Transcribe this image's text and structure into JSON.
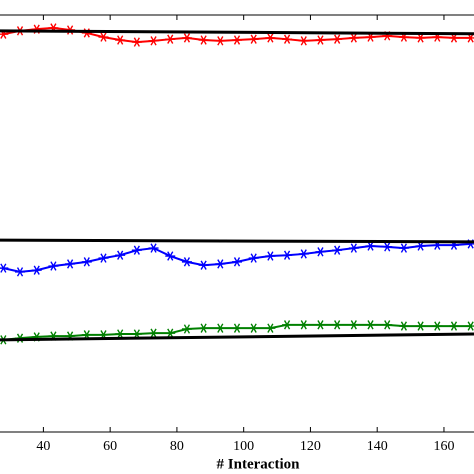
{
  "chart_data": {
    "type": "line",
    "x_label": "# Interaction",
    "xlim": [
      27,
      169
    ],
    "ylim": [
      0,
      1
    ],
    "xticks": [
      40,
      60,
      80,
      100,
      120,
      140,
      160
    ],
    "x": [
      28,
      33,
      38,
      43,
      48,
      53,
      58,
      63,
      68,
      73,
      78,
      83,
      88,
      93,
      98,
      103,
      108,
      113,
      118,
      123,
      128,
      133,
      138,
      143,
      148,
      153,
      158,
      163,
      168
    ],
    "series": [
      {
        "color": "#ff0000",
        "marker": "star",
        "values": [
          0.954,
          0.962,
          0.966,
          0.969,
          0.964,
          0.957,
          0.947,
          0.94,
          0.935,
          0.938,
          0.942,
          0.945,
          0.94,
          0.938,
          0.94,
          0.942,
          0.945,
          0.942,
          0.938,
          0.94,
          0.942,
          0.945,
          0.947,
          0.95,
          0.947,
          0.945,
          0.947,
          0.945,
          0.945
        ]
      },
      {
        "color": "#0000ff",
        "marker": "star",
        "values": [
          0.393,
          0.384,
          0.388,
          0.398,
          0.403,
          0.408,
          0.417,
          0.424,
          0.436,
          0.441,
          0.422,
          0.408,
          0.4,
          0.403,
          0.408,
          0.417,
          0.422,
          0.424,
          0.427,
          0.432,
          0.436,
          0.441,
          0.446,
          0.444,
          0.441,
          0.446,
          0.448,
          0.448,
          0.451
        ]
      },
      {
        "color": "#008000",
        "marker": "star",
        "values": [
          0.221,
          0.225,
          0.228,
          0.23,
          0.23,
          0.233,
          0.233,
          0.235,
          0.235,
          0.237,
          0.237,
          0.247,
          0.249,
          0.249,
          0.249,
          0.249,
          0.249,
          0.257,
          0.257,
          0.257,
          0.257,
          0.257,
          0.257,
          0.257,
          0.254,
          0.254,
          0.254,
          0.254,
          0.254
        ]
      },
      {
        "color": "#000000",
        "marker": "none",
        "x": [
          27,
          169
        ],
        "values": [
          0.962,
          0.955
        ]
      },
      {
        "color": "#000000",
        "marker": "none",
        "x": [
          27,
          169
        ],
        "values": [
          0.46,
          0.456
        ]
      },
      {
        "color": "#000000",
        "marker": "none",
        "x": [
          27,
          169
        ],
        "values": [
          0.221,
          0.235
        ]
      }
    ]
  }
}
